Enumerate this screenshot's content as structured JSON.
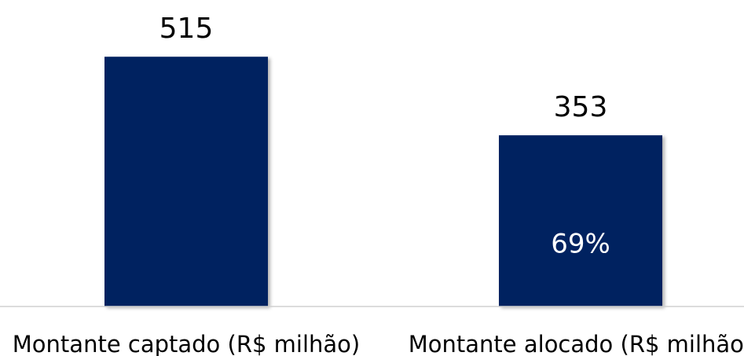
{
  "chart_data": {
    "type": "bar",
    "categories": [
      "Montante captado (R$ milhão)",
      "Montante alocado (R$ milhão)"
    ],
    "values": [
      515,
      353
    ],
    "color": "#002060",
    "ylim": [
      0,
      632
    ],
    "annotation": "69%"
  }
}
